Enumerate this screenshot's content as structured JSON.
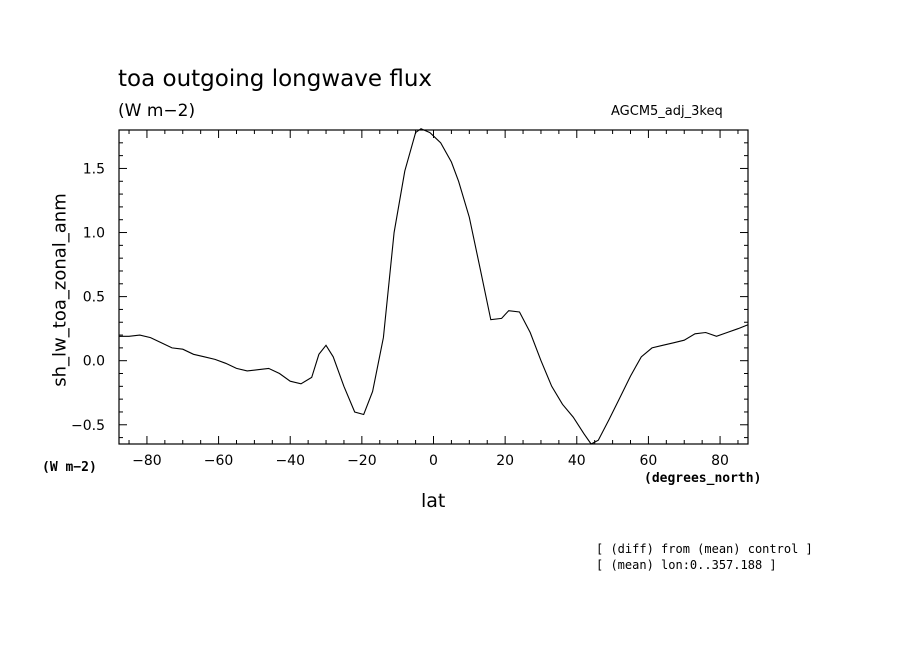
{
  "header": {
    "title": "toa outgoing longwave flux",
    "units": "(W m−2)",
    "run": "AGCM5_adj_3keq"
  },
  "axes": {
    "y_units": "(W m−2)",
    "x_units": "(degrees_north)"
  },
  "notes": [
    "[ (diff) from (mean) control ]",
    "[ (mean) lon:0..357.188 ]"
  ],
  "chart_data": {
    "type": "line",
    "title": "toa outgoing longwave flux",
    "xlabel": "lat",
    "ylabel": "sh_lw_toa_zonal_anm",
    "xlim": [
      -87.8,
      87.8
    ],
    "ylim": [
      -0.65,
      1.8
    ],
    "xticks": [
      -80,
      -60,
      -40,
      -20,
      0,
      20,
      40,
      60,
      80
    ],
    "xtick_labels": [
      "−80",
      "−60",
      "−40",
      "−20",
      "0",
      "20",
      "40",
      "60",
      "80"
    ],
    "yticks": [
      -0.5,
      0.0,
      0.5,
      1.0,
      1.5
    ],
    "ytick_labels": [
      "−0.5",
      "0.0",
      "0.5",
      "1.0",
      "1.5"
    ],
    "grid": false,
    "series": [
      {
        "color": "#000000",
        "x": [
          -87.8,
          -85,
          -82,
          -79,
          -76,
          -73,
          -70,
          -67,
          -64,
          -61,
          -58,
          -55,
          -52,
          -49,
          -46,
          -43,
          -40,
          -37,
          -34,
          -32,
          -30,
          -28,
          -25,
          -22,
          -19.5,
          -17,
          -14,
          -11,
          -8,
          -5,
          -3.5,
          -1,
          2,
          5,
          7,
          10,
          13,
          16,
          19,
          21,
          24,
          27,
          30,
          33,
          36,
          39,
          42,
          44,
          46,
          49,
          52,
          55,
          58,
          61,
          64,
          67,
          70,
          73,
          76,
          79,
          82,
          85,
          87.8
        ],
        "y": [
          0.19,
          0.19,
          0.2,
          0.18,
          0.14,
          0.1,
          0.09,
          0.05,
          0.03,
          0.01,
          -0.02,
          -0.06,
          -0.08,
          -0.07,
          -0.06,
          -0.1,
          -0.16,
          -0.18,
          -0.13,
          0.05,
          0.12,
          0.03,
          -0.2,
          -0.4,
          -0.42,
          -0.24,
          0.18,
          1.0,
          1.48,
          1.78,
          1.81,
          1.78,
          1.7,
          1.55,
          1.4,
          1.12,
          0.72,
          0.32,
          0.33,
          0.39,
          0.38,
          0.22,
          0.0,
          -0.2,
          -0.34,
          -0.44,
          -0.57,
          -0.65,
          -0.62,
          -0.46,
          -0.29,
          -0.12,
          0.03,
          0.1,
          0.12,
          0.14,
          0.16,
          0.21,
          0.22,
          0.19,
          0.22,
          0.25,
          0.28
        ]
      }
    ]
  }
}
